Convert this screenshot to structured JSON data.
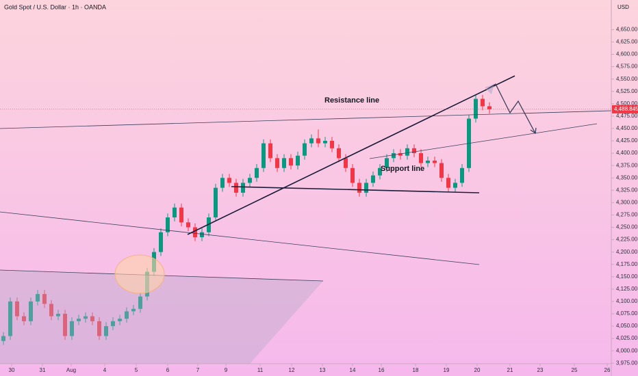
{
  "chart_data": {
    "type": "candlestick",
    "title": "Gold Spot / U.S. Dollar · 1h · OANDA",
    "currency": "USD",
    "annotations": [
      "Resistance line",
      "Support line"
    ],
    "up_color": "#089981",
    "down_color": "#f23645",
    "last_price": {
      "value": 4488.845,
      "label": "4,488.845"
    },
    "xlim": [
      0,
      89.3
    ],
    "ylim": [
      3974,
      4710
    ],
    "xticks": [
      {
        "value": 1.7,
        "label": "30"
      },
      {
        "value": 6.2,
        "label": "31"
      },
      {
        "value": 10.4,
        "label": "Aug"
      },
      {
        "value": 15.3,
        "label": "4"
      },
      {
        "value": 19.9,
        "label": "5"
      },
      {
        "value": 24.5,
        "label": "6"
      },
      {
        "value": 28.9,
        "label": "7"
      },
      {
        "value": 33.0,
        "label": "9"
      },
      {
        "value": 38.0,
        "label": "11"
      },
      {
        "value": 42.6,
        "label": "12"
      },
      {
        "value": 47.1,
        "label": "13"
      },
      {
        "value": 51.5,
        "label": "14"
      },
      {
        "value": 55.7,
        "label": "16"
      },
      {
        "value": 60.7,
        "label": "18"
      },
      {
        "value": 65.2,
        "label": "19"
      },
      {
        "value": 69.7,
        "label": "20"
      },
      {
        "value": 74.5,
        "label": "21"
      },
      {
        "value": 78.9,
        "label": "23"
      },
      {
        "value": 83.9,
        "label": "25"
      },
      {
        "value": 88.7,
        "label": "26"
      }
    ],
    "yticks": [
      {
        "value": 3975,
        "label": "3,975.00"
      },
      {
        "value": 4000,
        "label": "4,000.00"
      },
      {
        "value": 4025,
        "label": "4,025.00"
      },
      {
        "value": 4050,
        "label": "4,050.00"
      },
      {
        "value": 4075,
        "label": "4,075.00"
      },
      {
        "value": 4100,
        "label": "4,100.00"
      },
      {
        "value": 4125,
        "label": "4,125.00"
      },
      {
        "value": 4150,
        "label": "4,150.00"
      },
      {
        "value": 4175,
        "label": "4,175.00"
      },
      {
        "value": 4200,
        "label": "4,200.00"
      },
      {
        "value": 4225,
        "label": "4,225.00"
      },
      {
        "value": 4250,
        "label": "4,250.00"
      },
      {
        "value": 4275,
        "label": "4,275.00"
      },
      {
        "value": 4300,
        "label": "4,300.00"
      },
      {
        "value": 4325,
        "label": "4,325.00"
      },
      {
        "value": 4350,
        "label": "4,350.00"
      },
      {
        "value": 4375,
        "label": "4,375.00"
      },
      {
        "value": 4400,
        "label": "4,400.00"
      },
      {
        "value": 4425,
        "label": "4,425.00"
      },
      {
        "value": 4450,
        "label": "4,450.00"
      },
      {
        "value": 4475,
        "label": "4,475.00"
      },
      {
        "value": 4500,
        "label": "4,500.00"
      },
      {
        "value": 4525,
        "label": "4,525.00"
      },
      {
        "value": 4550,
        "label": "4,550.00"
      },
      {
        "value": 4575,
        "label": "4,575.00"
      },
      {
        "value": 4600,
        "label": "4,600.00"
      },
      {
        "value": 4625,
        "label": "4,625.00"
      },
      {
        "value": 4650,
        "label": "4,650.00"
      }
    ],
    "x": [
      0.5,
      1.5,
      2.5,
      3.5,
      4.5,
      5.5,
      6.5,
      7.5,
      8.5,
      9.5,
      10.5,
      11.5,
      12.5,
      13.5,
      14.5,
      15.5,
      16.5,
      17.5,
      18.5,
      19.5,
      20.5,
      21.5,
      22.5,
      23.5,
      24.5,
      25.5,
      26.5,
      27.5,
      28.5,
      29.5,
      30.5,
      31.5,
      32.5,
      33.5,
      34.5,
      35.5,
      36.5,
      37.5,
      38.5,
      39.5,
      40.5,
      41.5,
      42.5,
      43.5,
      44.5,
      45.5,
      46.5,
      47.5,
      48.5,
      49.5,
      50.5,
      51.5,
      52.5,
      53.5,
      54.5,
      55.5,
      56.5,
      57.5,
      58.5,
      59.5,
      60.5,
      61.5,
      62.5,
      63.5,
      64.5,
      65.5,
      66.5,
      67.5,
      68.5,
      69.5,
      70.5,
      71.5
    ],
    "open": [
      4020,
      4030,
      4100,
      4070,
      4060,
      4100,
      4115,
      4095,
      4070,
      4075,
      4030,
      4060,
      4065,
      4070,
      4060,
      4030,
      4050,
      4060,
      4065,
      4080,
      4085,
      4110,
      4160,
      4200,
      4240,
      4270,
      4290,
      4260,
      4250,
      4230,
      4240,
      4270,
      4330,
      4350,
      4340,
      4320,
      4340,
      4350,
      4370,
      4420,
      4390,
      4370,
      4390,
      4375,
      4395,
      4420,
      4430,
      4420,
      4425,
      4410,
      4390,
      4370,
      4340,
      4320,
      4340,
      4355,
      4370,
      4390,
      4400,
      4395,
      4410,
      4400,
      4380,
      4385,
      4380,
      4350,
      4330,
      4340,
      4370,
      4470,
      4510,
      4495
    ],
    "high": [
      4038,
      4108,
      4108,
      4078,
      4108,
      4123,
      4123,
      4103,
      4083,
      4083,
      4068,
      4073,
      4078,
      4078,
      4068,
      4058,
      4068,
      4073,
      4088,
      4093,
      4118,
      4168,
      4208,
      4248,
      4278,
      4298,
      4298,
      4268,
      4258,
      4248,
      4278,
      4338,
      4358,
      4358,
      4348,
      4348,
      4358,
      4378,
      4428,
      4428,
      4398,
      4398,
      4398,
      4403,
      4428,
      4438,
      4448,
      4433,
      4433,
      4418,
      4398,
      4378,
      4348,
      4348,
      4363,
      4378,
      4398,
      4408,
      4408,
      4418,
      4418,
      4408,
      4393,
      4393,
      4388,
      4358,
      4348,
      4378,
      4478,
      4518,
      4518,
      4503
    ],
    "low": [
      4012,
      4022,
      4062,
      4052,
      4052,
      4092,
      4087,
      4062,
      4062,
      4022,
      4022,
      4052,
      4057,
      4052,
      4022,
      4022,
      4042,
      4052,
      4057,
      4072,
      4077,
      4102,
      4152,
      4192,
      4232,
      4262,
      4252,
      4242,
      4222,
      4222,
      4232,
      4262,
      4322,
      4332,
      4312,
      4312,
      4332,
      4342,
      4362,
      4382,
      4362,
      4362,
      4367,
      4367,
      4387,
      4412,
      4412,
      4412,
      4402,
      4382,
      4362,
      4332,
      4312,
      4312,
      4332,
      4347,
      4362,
      4382,
      4387,
      4387,
      4392,
      4372,
      4372,
      4372,
      4342,
      4322,
      4322,
      4332,
      4362,
      4462,
      4487,
      4480
    ],
    "close": [
      4030,
      4100,
      4070,
      4060,
      4100,
      4115,
      4095,
      4070,
      4075,
      4030,
      4060,
      4065,
      4070,
      4060,
      4030,
      4050,
      4060,
      4065,
      4080,
      4085,
      4110,
      4160,
      4200,
      4240,
      4270,
      4290,
      4260,
      4250,
      4230,
      4240,
      4270,
      4330,
      4350,
      4340,
      4320,
      4340,
      4350,
      4370,
      4420,
      4390,
      4370,
      4390,
      4375,
      4395,
      4420,
      4430,
      4420,
      4425,
      4410,
      4390,
      4370,
      4340,
      4320,
      4340,
      4355,
      4370,
      4390,
      4400,
      4395,
      4410,
      4400,
      4380,
      4385,
      4380,
      4350,
      4330,
      4340,
      4370,
      4470,
      4510,
      4495,
      4488.845
    ]
  }
}
